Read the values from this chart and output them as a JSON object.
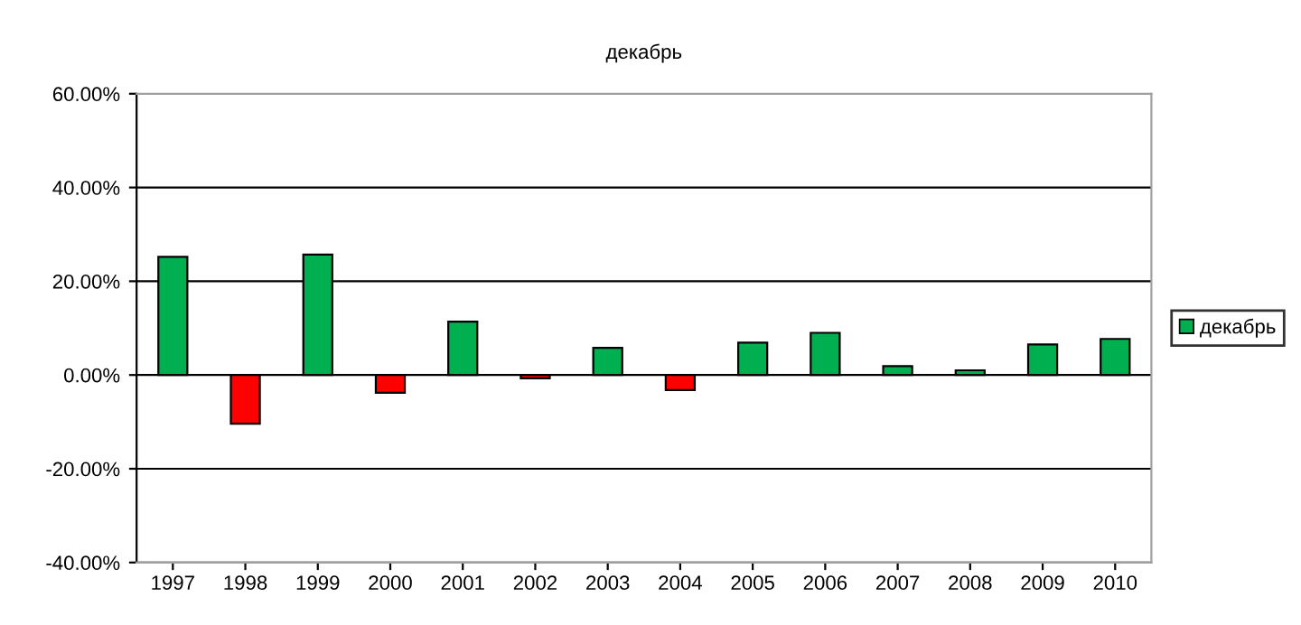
{
  "chart_data": {
    "type": "bar",
    "title": "декабрь",
    "categories": [
      "1997",
      "1998",
      "1999",
      "2000",
      "2001",
      "2002",
      "2003",
      "2004",
      "2005",
      "2006",
      "2007",
      "2008",
      "2009",
      "2010"
    ],
    "series": [
      {
        "name": "декабрь",
        "color": "#00b050",
        "values": [
          25.2,
          -10.4,
          25.7,
          -3.8,
          11.4,
          -0.7,
          5.8,
          -3.2,
          6.9,
          9.0,
          1.9,
          1.0,
          6.5,
          7.7
        ],
        "colors": [
          "#00b050",
          "#ff0000",
          "#00b050",
          "#ff0000",
          "#00b050",
          "#ff0000",
          "#00b050",
          "#ff0000",
          "#00b050",
          "#00b050",
          "#00b050",
          "#00b050",
          "#00b050",
          "#00b050"
        ]
      }
    ],
    "ylim": [
      -40,
      60
    ],
    "yticks": [
      {
        "value": -40,
        "label": "-40.00%"
      },
      {
        "value": -20,
        "label": "-20.00%"
      },
      {
        "value": 0,
        "label": "0.00%"
      },
      {
        "value": 20,
        "label": "20.00%"
      },
      {
        "value": 40,
        "label": "40.00%"
      },
      {
        "value": 60,
        "label": "60.00%"
      }
    ],
    "grid": "y",
    "legend": "right"
  }
}
